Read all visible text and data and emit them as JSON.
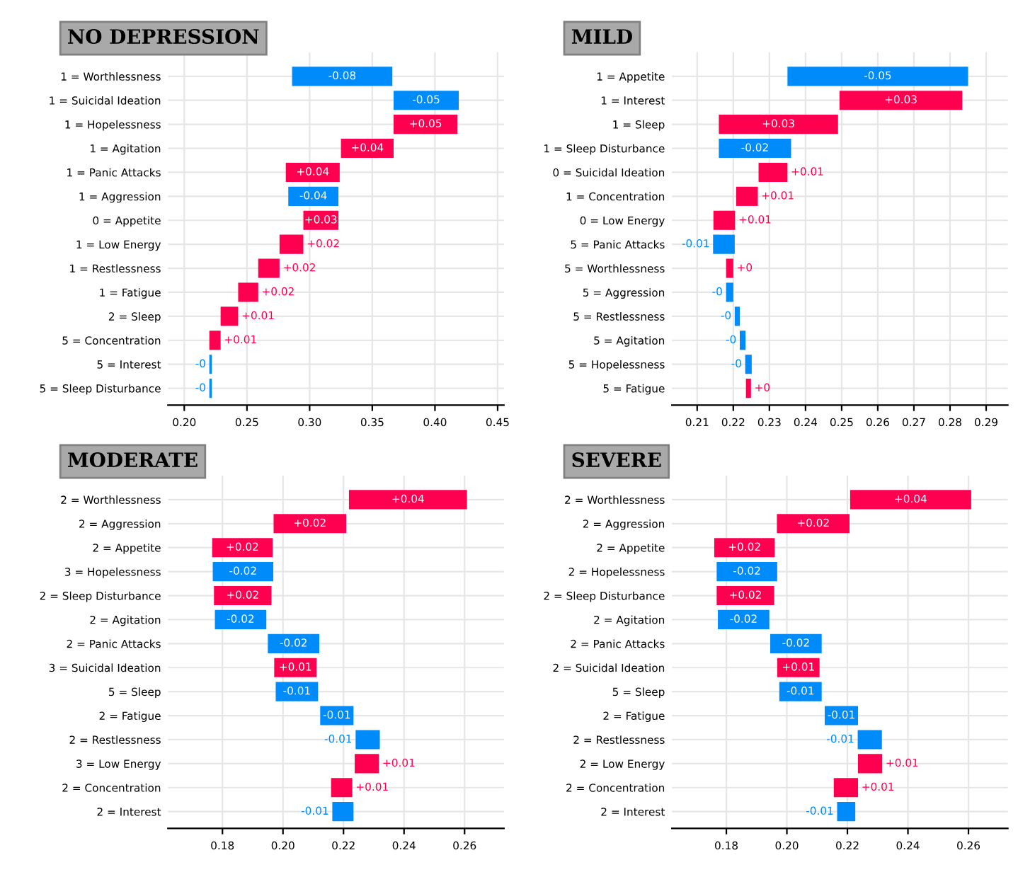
{
  "chart_data": [
    {
      "type": "bar",
      "orientation": "horizontal",
      "title": "NO DEPRESSION",
      "grid": true,
      "categories": [
        "1 = Worthlessness",
        "1 = Suicidal Ideation",
        "1 = Hopelessness",
        "1 = Agitation",
        "1 = Panic Attacks",
        "1 = Aggression",
        "0 = Appetite",
        "1 = Low Energy",
        "1 = Restlessness",
        "1 = Fatigue",
        "2 = Sleep",
        "5 = Concentration",
        "5 = Interest",
        "5 = Sleep Disturbance"
      ],
      "base": [
        0.366,
        0.419,
        0.367,
        0.325,
        0.281,
        0.323,
        0.295,
        0.276,
        0.259,
        0.243,
        0.229,
        0.22,
        0.222,
        0.222
      ],
      "values": [
        -0.08,
        -0.052,
        0.051,
        0.042,
        0.043,
        -0.04,
        0.028,
        0.019,
        0.017,
        0.016,
        0.014,
        0.009,
        -0.002,
        -0.002
      ],
      "colors": [
        "#008bfb",
        "#008bfb",
        "#ff0051",
        "#ff0051",
        "#ff0051",
        "#008bfb",
        "#ff0051",
        "#ff0051",
        "#ff0051",
        "#ff0051",
        "#ff0051",
        "#ff0051",
        "#008bfb",
        "#008bfb"
      ],
      "value_labels": [
        "-0.08",
        "-0.05",
        "+0.05",
        "+0.04",
        "+0.04",
        "-0.04",
        "+0.03",
        "+0.02",
        "+0.02",
        "+0.02",
        "+0.01",
        "+0.01",
        "-0",
        "-0"
      ],
      "xlim": [
        0.187,
        0.455
      ],
      "xticks": [
        {
          "value": 0.2,
          "label": "0.20"
        },
        {
          "value": 0.25,
          "label": "0.25"
        },
        {
          "value": 0.3,
          "label": "0.30"
        },
        {
          "value": 0.35,
          "label": "0.35"
        },
        {
          "value": 0.4,
          "label": "0.40"
        },
        {
          "value": 0.45,
          "label": "0.45"
        }
      ]
    },
    {
      "type": "bar",
      "orientation": "horizontal",
      "title": "MILD",
      "grid": true,
      "categories": [
        "1 = Appetite",
        "1 = Interest",
        "1 = Sleep",
        "1 = Sleep Disturbance",
        "0 = Suicidal Ideation",
        "1 = Concentration",
        "0 = Low Energy",
        "5 = Panic Attacks",
        "5 = Worthlessness",
        "5 = Aggression",
        "5 = Restlessness",
        "5 = Agitation",
        "5 = Hopelessness",
        "5 = Fatigue"
      ],
      "base": [
        0.285,
        0.2494,
        0.216,
        0.236,
        0.227,
        0.2208,
        0.2145,
        0.2204,
        0.218,
        0.22,
        0.2218,
        0.2234,
        0.2251,
        0.2235
      ],
      "values": [
        -0.05,
        0.034,
        0.033,
        -0.02,
        0.008,
        0.006,
        0.006,
        -0.006,
        0.002,
        -0.002,
        -0.0014,
        -0.0016,
        -0.0018,
        0.0014
      ],
      "colors": [
        "#008bfb",
        "#ff0051",
        "#ff0051",
        "#008bfb",
        "#ff0051",
        "#ff0051",
        "#ff0051",
        "#008bfb",
        "#ff0051",
        "#008bfb",
        "#008bfb",
        "#008bfb",
        "#008bfb",
        "#ff0051"
      ],
      "value_labels": [
        "-0.05",
        "+0.03",
        "+0.03",
        "-0.02",
        "+0.01",
        "+0.01",
        "+0.01",
        "-0.01",
        "+0",
        "-0",
        "-0",
        "-0",
        "-0",
        "+0"
      ],
      "xlim": [
        0.203,
        0.296
      ],
      "xticks": [
        0.21,
        0.22,
        0.23,
        0.24,
        0.25,
        0.26,
        0.27,
        0.28,
        0.29
      ]
    },
    {
      "type": "bar",
      "orientation": "horizontal",
      "title": "MODERATE",
      "grid": true,
      "categories": [
        "2 = Worthlessness",
        "2 = Aggression",
        "2 = Appetite",
        "3 = Hopelessness",
        "2 = Sleep Disturbance",
        "2 = Agitation",
        "2 = Panic Attacks",
        "3 = Suicidal Ideation",
        "5 = Sleep",
        "2 = Fatigue",
        "2 = Restlessness",
        "3 = Low Energy",
        "2 = Concentration",
        "2 = Interest"
      ],
      "base": [
        0.2218,
        0.1969,
        0.1766,
        0.1968,
        0.1772,
        0.1945,
        0.212,
        0.1971,
        0.2116,
        0.2233,
        0.232,
        0.2237,
        0.2159,
        0.2233
      ],
      "values": [
        0.039,
        0.024,
        0.02,
        -0.02,
        0.019,
        -0.017,
        -0.017,
        0.014,
        -0.014,
        -0.011,
        -0.008,
        0.008,
        0.007,
        -0.007
      ],
      "colors": [
        "#ff0051",
        "#ff0051",
        "#ff0051",
        "#008bfb",
        "#ff0051",
        "#008bfb",
        "#008bfb",
        "#ff0051",
        "#008bfb",
        "#008bfb",
        "#008bfb",
        "#ff0051",
        "#ff0051",
        "#008bfb"
      ],
      "value_labels": [
        "+0.04",
        "+0.02",
        "+0.02",
        "-0.02",
        "+0.02",
        "-0.02",
        "-0.02",
        "+0.01",
        "-0.01",
        "-0.01",
        "-0.01",
        "+0.01",
        "+0.01",
        "-0.01"
      ],
      "xlim": [
        0.162,
        0.273
      ],
      "xticks": [
        {
          "value": 0.18,
          "label": "0.18"
        },
        {
          "value": 0.2,
          "label": "0.20"
        },
        {
          "value": 0.22,
          "label": "0.22"
        },
        {
          "value": 0.24,
          "label": "0.24"
        },
        {
          "value": 0.26,
          "label": "0.26"
        }
      ]
    },
    {
      "type": "bar",
      "orientation": "horizontal",
      "title": "SEVERE",
      "grid": true,
      "categories": [
        "2 = Worthlessness",
        "2 = Aggression",
        "2 = Appetite",
        "2 = Hopelessness",
        "2 = Sleep Disturbance",
        "2 = Agitation",
        "2 = Panic Attacks",
        "2 = Suicidal Ideation",
        "5 = Sleep",
        "2 = Fatigue",
        "2 = Restlessness",
        "2 = Low Energy",
        "2 = Concentration",
        "2 = Interest"
      ],
      "base": [
        0.2209,
        0.1967,
        0.176,
        0.1968,
        0.1768,
        0.1942,
        0.2115,
        0.1968,
        0.2115,
        0.2235,
        0.2314,
        0.2235,
        0.2155,
        0.2226
      ],
      "values": [
        0.04,
        0.024,
        0.02,
        -0.02,
        0.019,
        -0.017,
        -0.017,
        0.014,
        -0.014,
        -0.011,
        -0.008,
        0.008,
        0.008,
        -0.006
      ],
      "colors": [
        "#ff0051",
        "#ff0051",
        "#ff0051",
        "#008bfb",
        "#ff0051",
        "#008bfb",
        "#008bfb",
        "#ff0051",
        "#008bfb",
        "#008bfb",
        "#008bfb",
        "#ff0051",
        "#ff0051",
        "#008bfb"
      ],
      "value_labels": [
        "+0.04",
        "+0.02",
        "+0.02",
        "-0.02",
        "+0.02",
        "-0.02",
        "-0.02",
        "+0.01",
        "-0.01",
        "-0.01",
        "-0.01",
        "+0.01",
        "+0.01",
        "-0.01"
      ],
      "xlim": [
        0.162,
        0.273
      ],
      "xticks": [
        {
          "value": 0.18,
          "label": "0.18"
        },
        {
          "value": 0.2,
          "label": "0.20"
        },
        {
          "value": 0.22,
          "label": "0.22"
        },
        {
          "value": 0.24,
          "label": "0.24"
        },
        {
          "value": 0.26,
          "label": "0.26"
        }
      ]
    }
  ]
}
